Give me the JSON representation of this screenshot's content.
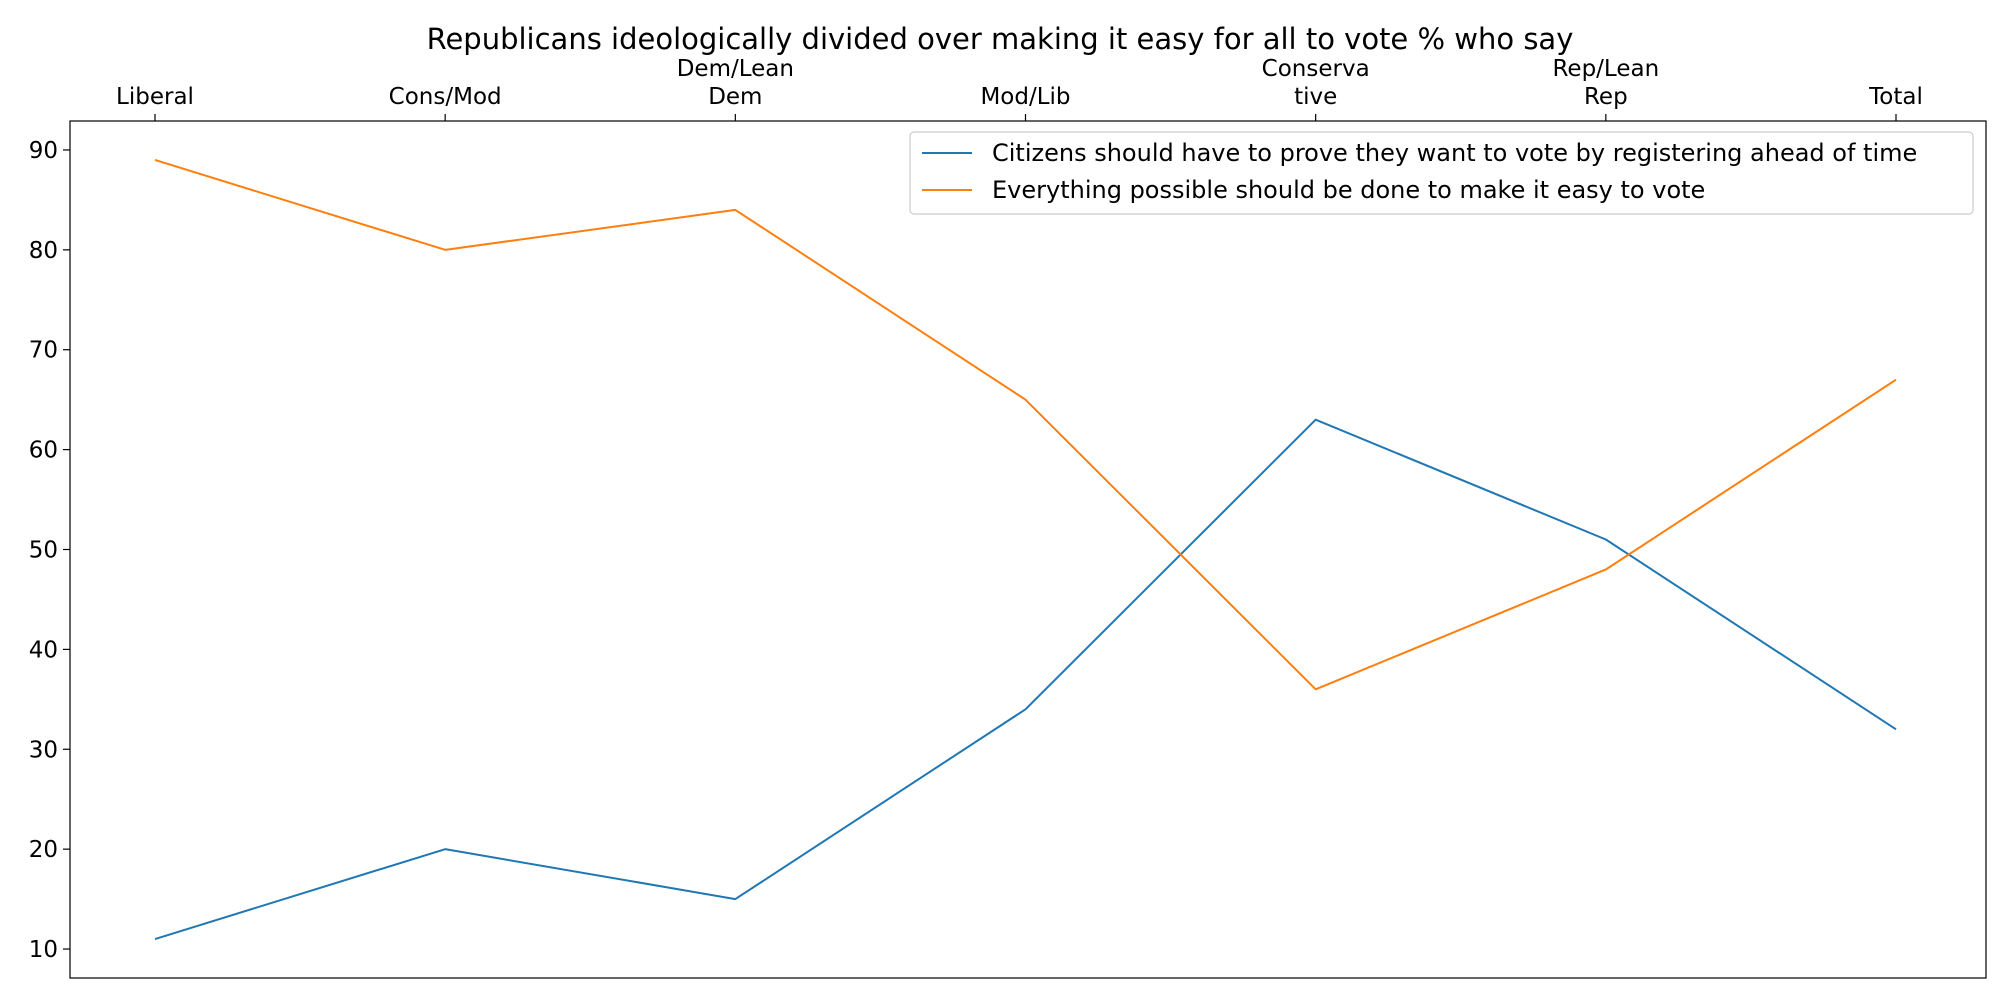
{
  "chart_data": {
    "type": "line",
    "title": "Republicans ideologically divided over making it easy for all to vote % who say",
    "xlabel": "",
    "ylabel": "",
    "categories": [
      [
        "Liberal"
      ],
      [
        "Cons/Mod"
      ],
      [
        "Dem/Lean",
        "Dem"
      ],
      [
        "Mod/Lib"
      ],
      [
        "Conserva",
        "tive"
      ],
      [
        "Rep/Lean",
        "Rep"
      ],
      [
        "Total"
      ]
    ],
    "x_axis_position": "top",
    "ylim": [
      7.1,
      92.9
    ],
    "yticks": [
      10,
      20,
      30,
      40,
      50,
      60,
      70,
      80,
      90
    ],
    "grid": false,
    "legend_position": "top-right",
    "series": [
      {
        "name": "Citizens should have to prove they want to vote by registering ahead of time",
        "color": "#1f77b4",
        "values": [
          11,
          20,
          15,
          34,
          63,
          51,
          32
        ]
      },
      {
        "name": "Everything possible should be done to make it easy to vote",
        "color": "#ff7f0e",
        "values": [
          89,
          80,
          84,
          65,
          36,
          48,
          67
        ]
      }
    ]
  }
}
